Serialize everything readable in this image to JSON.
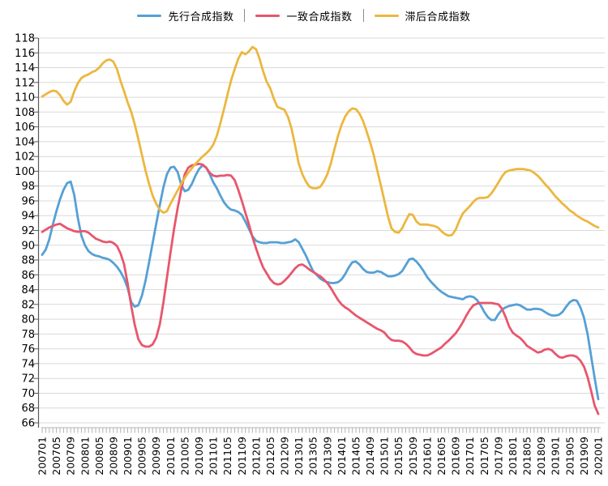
{
  "legend": {
    "items": [
      {
        "id": "leading",
        "label": "先行合成指数",
        "color": "#55a0d5"
      },
      {
        "id": "coincident",
        "label": "一致合成指数",
        "color": "#e8566d"
      },
      {
        "id": "lagging",
        "label": "滞后合成指数",
        "color": "#ecb73f"
      }
    ]
  },
  "colors": {
    "grid": "#d9d9d9",
    "axis": "#595959",
    "tick": "#b3b3b3",
    "label": "#000000"
  },
  "chart_data": {
    "type": "line",
    "title": "",
    "xlabel": "",
    "ylabel": "",
    "ylim": [
      66,
      118
    ],
    "y_tick_step": 2,
    "grid": true,
    "legend_position": "top-center",
    "x_months_total": 157,
    "x_label_every_n_months": 4,
    "x_tick_labels": [
      "200701",
      "200705",
      "200709",
      "200801",
      "200805",
      "200809",
      "200901",
      "200905",
      "200909",
      "201001",
      "201005",
      "201009",
      "201101",
      "201105",
      "201109",
      "201201",
      "201205",
      "201209",
      "201301",
      "201305",
      "201309",
      "201401",
      "201405",
      "201409",
      "201501",
      "201505",
      "201509",
      "201601",
      "201605",
      "201609",
      "201701",
      "201705",
      "201709",
      "201801",
      "201805",
      "201809",
      "201901",
      "201905",
      "201909",
      "202001"
    ],
    "series": [
      {
        "id": "leading",
        "name": "先行合成指数",
        "color": "#55a0d5",
        "values": [
          88.7,
          89.4,
          90.8,
          92.8,
          94.6,
          96.2,
          97.5,
          98.4,
          98.6,
          96.8,
          93.7,
          91.3,
          90.0,
          89.2,
          88.8,
          88.6,
          88.5,
          88.3,
          88.2,
          88.0,
          87.6,
          87.1,
          86.4,
          85.5,
          84.2,
          82.3,
          81.7,
          81.9,
          83.2,
          85.2,
          87.7,
          90.3,
          92.9,
          95.4,
          97.8,
          99.6,
          100.5,
          100.6,
          99.9,
          98.2,
          97.3,
          97.5,
          98.3,
          99.4,
          100.3,
          100.8,
          100.5,
          99.6,
          98.5,
          97.7,
          96.7,
          95.8,
          95.2,
          94.8,
          94.7,
          94.5,
          94.1,
          93.2,
          92.2,
          91.2,
          90.6,
          90.4,
          90.3,
          90.3,
          90.4,
          90.4,
          90.4,
          90.3,
          90.3,
          90.4,
          90.5,
          90.8,
          90.4,
          89.5,
          88.6,
          87.5,
          86.5,
          86.0,
          85.5,
          85.2,
          85.0,
          84.9,
          84.9,
          85.0,
          85.4,
          86.1,
          87.0,
          87.7,
          87.8,
          87.4,
          86.8,
          86.4,
          86.3,
          86.3,
          86.5,
          86.4,
          86.1,
          85.8,
          85.8,
          85.9,
          86.1,
          86.5,
          87.3,
          88.1,
          88.2,
          87.8,
          87.2,
          86.5,
          85.7,
          85.1,
          84.6,
          84.1,
          83.7,
          83.4,
          83.1,
          83.0,
          82.9,
          82.8,
          82.7,
          83.0,
          83.1,
          83.0,
          82.6,
          81.9,
          81.0,
          80.3,
          79.9,
          79.9,
          80.7,
          81.3,
          81.6,
          81.8,
          81.9,
          82.0,
          81.9,
          81.6,
          81.3,
          81.3,
          81.4,
          81.4,
          81.3,
          81.0,
          80.7,
          80.5,
          80.5,
          80.6,
          81.0,
          81.7,
          82.3,
          82.6,
          82.5,
          81.6,
          80.2,
          78.0,
          75.0,
          72.0,
          69.2
        ]
      },
      {
        "id": "coincident",
        "name": "一致合成指数",
        "color": "#e8566d",
        "values": [
          91.8,
          92.1,
          92.4,
          92.6,
          92.8,
          92.9,
          92.6,
          92.3,
          92.1,
          91.9,
          91.8,
          91.9,
          91.9,
          91.7,
          91.3,
          90.9,
          90.7,
          90.5,
          90.4,
          90.5,
          90.3,
          89.9,
          88.9,
          87.4,
          84.8,
          81.8,
          79.2,
          77.3,
          76.5,
          76.3,
          76.3,
          76.6,
          77.5,
          79.3,
          82.2,
          85.6,
          89.0,
          92.2,
          95.0,
          97.5,
          99.6,
          100.5,
          100.8,
          100.9,
          101.0,
          100.9,
          100.5,
          99.8,
          99.4,
          99.3,
          99.4,
          99.4,
          99.5,
          99.4,
          98.8,
          97.5,
          96.0,
          94.4,
          92.8,
          91.1,
          89.6,
          88.2,
          87.0,
          86.2,
          85.4,
          84.9,
          84.7,
          84.8,
          85.2,
          85.7,
          86.3,
          86.9,
          87.3,
          87.4,
          87.1,
          86.7,
          86.4,
          86.1,
          85.8,
          85.4,
          84.9,
          84.2,
          83.4,
          82.6,
          82.0,
          81.6,
          81.3,
          80.9,
          80.5,
          80.2,
          79.9,
          79.6,
          79.3,
          79.0,
          78.7,
          78.5,
          78.2,
          77.6,
          77.2,
          77.1,
          77.1,
          77.0,
          76.7,
          76.2,
          75.6,
          75.3,
          75.2,
          75.1,
          75.1,
          75.3,
          75.6,
          75.9,
          76.2,
          76.7,
          77.1,
          77.6,
          78.1,
          78.8,
          79.6,
          80.5,
          81.3,
          81.9,
          82.1,
          82.2,
          82.2,
          82.2,
          82.2,
          82.1,
          82.0,
          81.4,
          80.3,
          79.0,
          78.2,
          77.8,
          77.5,
          77.0,
          76.4,
          76.1,
          75.8,
          75.5,
          75.6,
          75.9,
          76.0,
          75.8,
          75.3,
          74.9,
          74.8,
          75.0,
          75.1,
          75.1,
          74.9,
          74.4,
          73.6,
          72.2,
          70.3,
          68.3,
          67.2
        ]
      },
      {
        "id": "lagging",
        "name": "滞后合成指数",
        "color": "#ecb73f",
        "values": [
          110.1,
          110.4,
          110.7,
          110.9,
          110.8,
          110.3,
          109.5,
          109.0,
          109.4,
          110.8,
          111.9,
          112.6,
          112.9,
          113.1,
          113.4,
          113.6,
          114.0,
          114.6,
          115.0,
          115.1,
          114.8,
          113.8,
          112.2,
          110.8,
          109.3,
          108.0,
          106.3,
          104.3,
          102.2,
          100.1,
          98.3,
          96.7,
          95.6,
          94.8,
          94.4,
          94.6,
          95.6,
          96.5,
          97.4,
          98.3,
          99.1,
          99.8,
          100.4,
          101.0,
          101.5,
          102.0,
          102.4,
          102.9,
          103.6,
          104.8,
          106.5,
          108.4,
          110.4,
          112.3,
          113.8,
          115.2,
          116.1,
          115.8,
          116.2,
          116.8,
          116.5,
          115.2,
          113.5,
          112.1,
          111.2,
          109.8,
          108.7,
          108.5,
          108.3,
          107.3,
          105.7,
          103.4,
          101.0,
          99.6,
          98.6,
          97.9,
          97.7,
          97.7,
          97.9,
          98.6,
          99.6,
          101.1,
          103.0,
          104.8,
          106.3,
          107.4,
          108.1,
          108.5,
          108.4,
          107.8,
          106.8,
          105.4,
          103.9,
          102.2,
          100.1,
          98.1,
          96.0,
          93.9,
          92.3,
          91.8,
          91.7,
          92.3,
          93.3,
          94.2,
          94.1,
          93.2,
          92.8,
          92.8,
          92.8,
          92.7,
          92.6,
          92.4,
          91.9,
          91.5,
          91.3,
          91.4,
          92.1,
          93.3,
          94.3,
          94.8,
          95.3,
          95.9,
          96.3,
          96.4,
          96.4,
          96.5,
          97.0,
          97.7,
          98.5,
          99.3,
          99.9,
          100.1,
          100.2,
          100.3,
          100.3,
          100.3,
          100.2,
          100.1,
          99.8,
          99.4,
          98.9,
          98.3,
          97.8,
          97.2,
          96.6,
          96.1,
          95.6,
          95.2,
          94.7,
          94.4,
          94.0,
          93.7,
          93.4,
          93.2,
          92.9,
          92.6,
          92.4
        ]
      }
    ]
  }
}
